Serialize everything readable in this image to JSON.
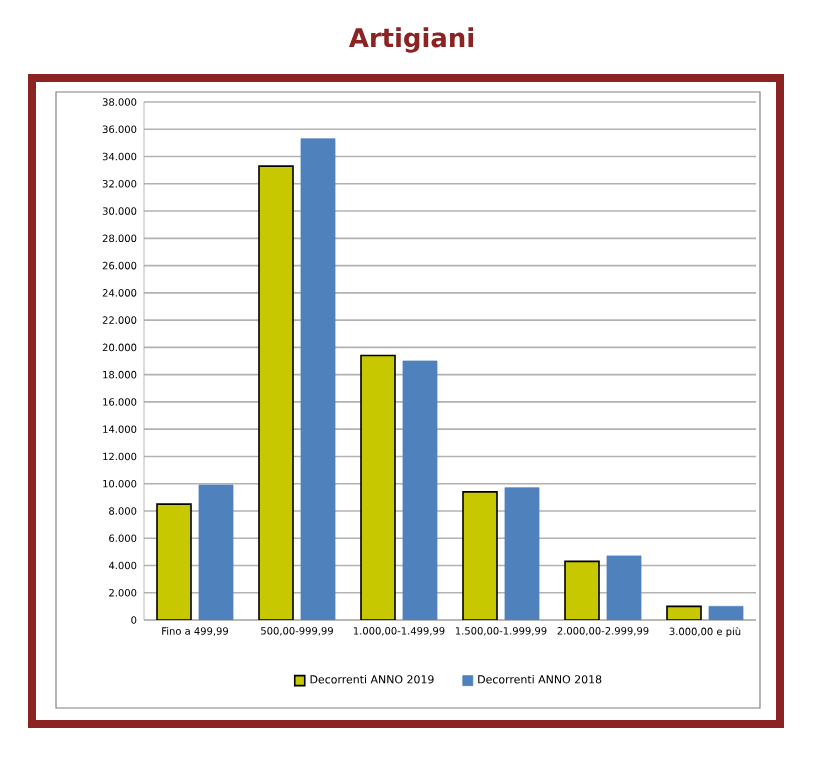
{
  "chart_data": {
    "type": "bar",
    "title": "Artigiani",
    "categories": [
      "Fino a 499,99",
      "500,00-999,99",
      "1.000,00-1.499,99",
      "1.500,00-1.999,99",
      "2.000,00-2.999,99",
      "3.000,00 e più"
    ],
    "series": [
      {
        "name": "Decorrenti ANNO 2019",
        "color": "#c8c800",
        "values": [
          8500,
          33300,
          19400,
          9400,
          4300,
          1000
        ]
      },
      {
        "name": "Decorrenti ANNO 2018",
        "color": "#4f81bd",
        "values": [
          9900,
          35300,
          19000,
          9700,
          4700,
          1000
        ]
      }
    ],
    "ylim": [
      0,
      38000
    ],
    "yticks": [
      {
        "value": 0,
        "label": "0"
      },
      {
        "value": 2000,
        "label": "2.000"
      },
      {
        "value": 4000,
        "label": "4.000"
      },
      {
        "value": 6000,
        "label": "6.000"
      },
      {
        "value": 8000,
        "label": "8.000"
      },
      {
        "value": 10000,
        "label": "10.000"
      },
      {
        "value": 12000,
        "label": "12.000"
      },
      {
        "value": 14000,
        "label": "14.000"
      },
      {
        "value": 16000,
        "label": "16.000"
      },
      {
        "value": 18000,
        "label": "18.000"
      },
      {
        "value": 20000,
        "label": "20.000"
      },
      {
        "value": 22000,
        "label": "22.000"
      },
      {
        "value": 24000,
        "label": "24.000"
      },
      {
        "value": 26000,
        "label": "26.000"
      },
      {
        "value": 28000,
        "label": "28.000"
      },
      {
        "value": 30000,
        "label": "30.000"
      },
      {
        "value": 32000,
        "label": "32.000"
      },
      {
        "value": 34000,
        "label": "34.000"
      },
      {
        "value": 36000,
        "label": "36.000"
      },
      {
        "value": 38000,
        "label": "38.000"
      }
    ],
    "grid": "y",
    "legend": "bottom"
  }
}
